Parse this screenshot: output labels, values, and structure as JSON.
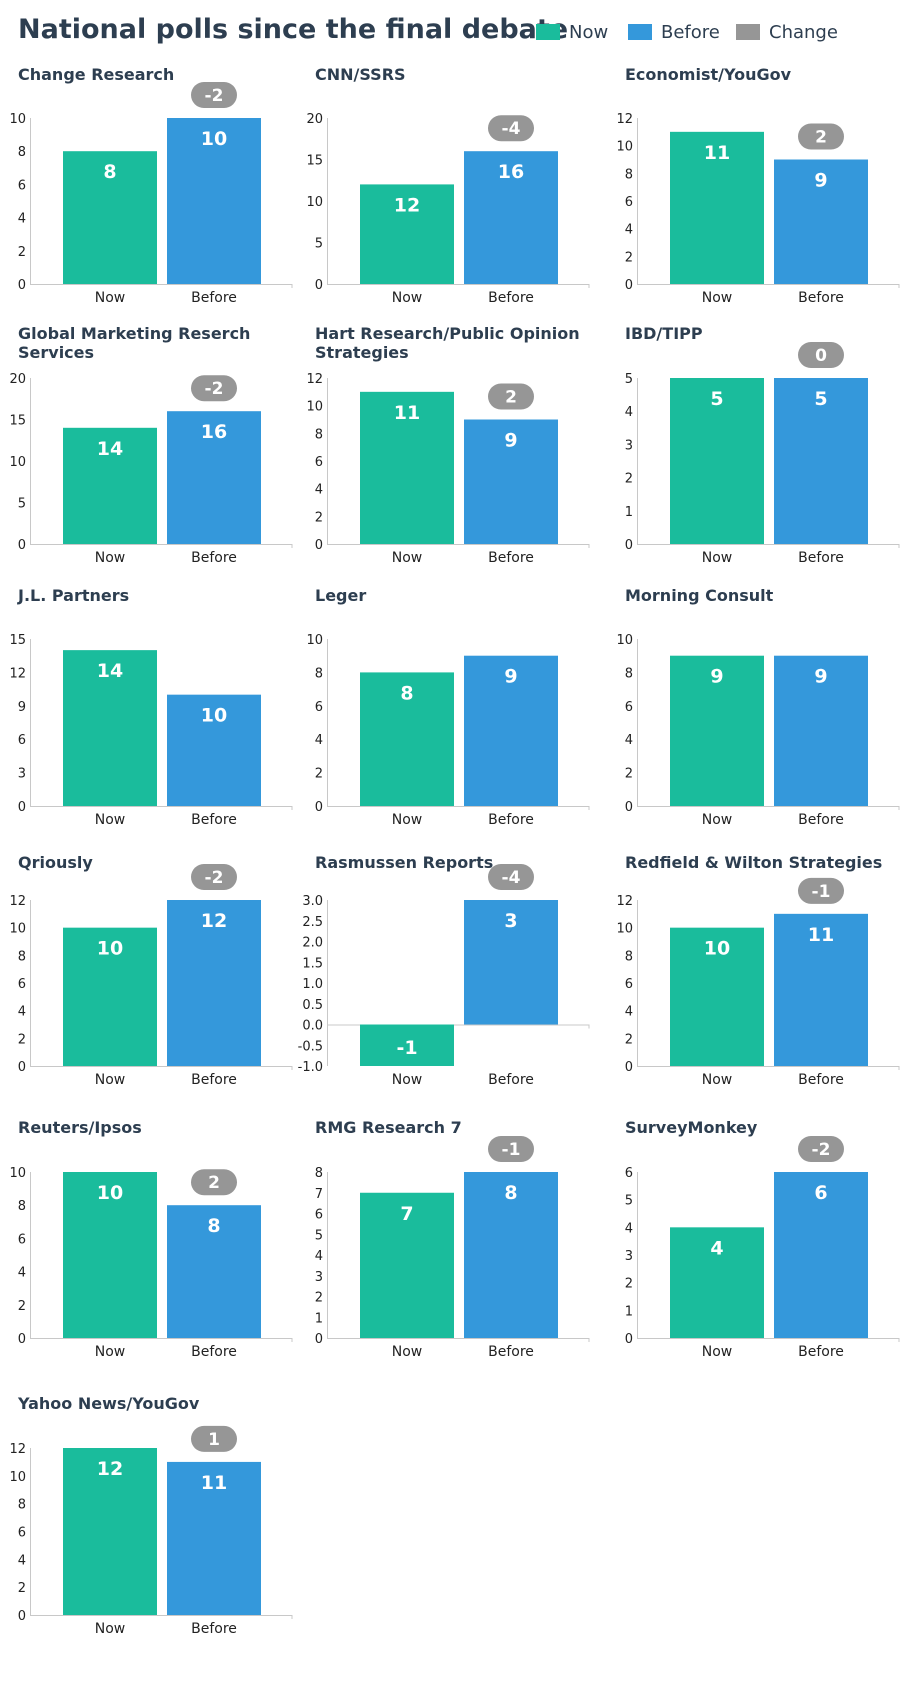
{
  "title": "National polls since the final debate",
  "legend": [
    {
      "label": "Now",
      "color": "#1abc9c"
    },
    {
      "label": "Before",
      "color": "#3498db"
    },
    {
      "label": "Change",
      "color": "#969696"
    }
  ],
  "colors": {
    "now": "#1abc9c",
    "before": "#3498db",
    "change": "#969696",
    "text": "#2d3e50",
    "axis": "#c8c8c8"
  },
  "chart_data": [
    {
      "type": "bar",
      "title": "Change Research",
      "categories": [
        "Now",
        "Before"
      ],
      "values": [
        8,
        10
      ],
      "value_labels": [
        "8",
        "10"
      ],
      "change": "-2",
      "ylim": [
        0,
        10
      ],
      "yticks": [
        "0",
        "2",
        "4",
        "6",
        "8",
        "10"
      ]
    },
    {
      "type": "bar",
      "title": "CNN/SSRS",
      "categories": [
        "Now",
        "Before"
      ],
      "values": [
        12,
        16
      ],
      "value_labels": [
        "12",
        "16"
      ],
      "change": "-4",
      "ylim": [
        0,
        20
      ],
      "yticks": [
        "0",
        "5",
        "10",
        "15",
        "20"
      ]
    },
    {
      "type": "bar",
      "title": "Economist/YouGov",
      "categories": [
        "Now",
        "Before"
      ],
      "values": [
        11,
        9
      ],
      "value_labels": [
        "11",
        "9"
      ],
      "change": "2",
      "ylim": [
        0,
        12
      ],
      "yticks": [
        "0",
        "2",
        "4",
        "6",
        "8",
        "10",
        "12"
      ]
    },
    {
      "type": "bar",
      "title": "Global Marketing Reserch Services",
      "categories": [
        "Now",
        "Before"
      ],
      "values": [
        14,
        16
      ],
      "value_labels": [
        "14",
        "16"
      ],
      "change": "-2",
      "ylim": [
        0,
        20
      ],
      "yticks": [
        "0",
        "5",
        "10",
        "15",
        "20"
      ]
    },
    {
      "type": "bar",
      "title": "Hart Research/Public Opinion Strategies",
      "categories": [
        "Now",
        "Before"
      ],
      "values": [
        11,
        9
      ],
      "value_labels": [
        "11",
        "9"
      ],
      "change": "2",
      "ylim": [
        0,
        12
      ],
      "yticks": [
        "0",
        "2",
        "4",
        "6",
        "8",
        "10",
        "12"
      ]
    },
    {
      "type": "bar",
      "title": "IBD/TIPP",
      "categories": [
        "Now",
        "Before"
      ],
      "values": [
        5,
        5
      ],
      "value_labels": [
        "5",
        "5"
      ],
      "change": "0",
      "ylim": [
        0,
        5
      ],
      "yticks": [
        "0",
        "1",
        "2",
        "3",
        "4",
        "5"
      ]
    },
    {
      "type": "bar",
      "title": "J.L. Partners",
      "categories": [
        "Now",
        "Before"
      ],
      "values": [
        14,
        10
      ],
      "value_labels": [
        "14",
        "10"
      ],
      "change": "",
      "ylim": [
        0,
        15
      ],
      "yticks": [
        "0",
        "3",
        "6",
        "9",
        "12",
        "15"
      ]
    },
    {
      "type": "bar",
      "title": "Leger",
      "categories": [
        "Now",
        "Before"
      ],
      "values": [
        8,
        9
      ],
      "value_labels": [
        "8",
        "9"
      ],
      "change": "",
      "ylim": [
        0,
        10
      ],
      "yticks": [
        "0",
        "2",
        "4",
        "6",
        "8",
        "10"
      ]
    },
    {
      "type": "bar",
      "title": "Morning Consult",
      "categories": [
        "Now",
        "Before"
      ],
      "values": [
        9,
        9
      ],
      "value_labels": [
        "9",
        "9"
      ],
      "change": "",
      "ylim": [
        0,
        10
      ],
      "yticks": [
        "0",
        "2",
        "4",
        "6",
        "8",
        "10"
      ]
    },
    {
      "type": "bar",
      "title": "Qriously",
      "categories": [
        "Now",
        "Before"
      ],
      "values": [
        10,
        12
      ],
      "value_labels": [
        "10",
        "12"
      ],
      "change": "-2",
      "ylim": [
        0,
        12
      ],
      "yticks": [
        "0",
        "2",
        "4",
        "6",
        "8",
        "10",
        "12"
      ]
    },
    {
      "type": "bar",
      "title": "Rasmussen Reports",
      "categories": [
        "Now",
        "Before"
      ],
      "values": [
        -1,
        3
      ],
      "value_labels": [
        "-1",
        "3"
      ],
      "change": "-4",
      "ylim": [
        -1,
        3
      ],
      "yticks": [
        "-1.0",
        "-0.5",
        "0.0",
        "0.5",
        "1.0",
        "1.5",
        "2.0",
        "2.5",
        "3.0"
      ]
    },
    {
      "type": "bar",
      "title": "Redfield & Wilton Strategies",
      "categories": [
        "Now",
        "Before"
      ],
      "values": [
        10,
        11
      ],
      "value_labels": [
        "10",
        "11"
      ],
      "change": "-1",
      "ylim": [
        0,
        12
      ],
      "yticks": [
        "0",
        "2",
        "4",
        "6",
        "8",
        "10",
        "12"
      ]
    },
    {
      "type": "bar",
      "title": "Reuters/Ipsos",
      "categories": [
        "Now",
        "Before"
      ],
      "values": [
        10,
        8
      ],
      "value_labels": [
        "10",
        "8"
      ],
      "change": "2",
      "ylim": [
        0,
        10
      ],
      "yticks": [
        "0",
        "2",
        "4",
        "6",
        "8",
        "10"
      ]
    },
    {
      "type": "bar",
      "title": "RMG Research   7",
      "categories": [
        "Now",
        "Before"
      ],
      "values": [
        7,
        8
      ],
      "value_labels": [
        "7",
        "8"
      ],
      "change": "-1",
      "ylim": [
        0,
        8
      ],
      "yticks": [
        "0",
        "1",
        "2",
        "3",
        "4",
        "5",
        "6",
        "7",
        "8"
      ]
    },
    {
      "type": "bar",
      "title": "SurveyMonkey",
      "categories": [
        "Now",
        "Before"
      ],
      "values": [
        4,
        6
      ],
      "value_labels": [
        "4",
        "6"
      ],
      "change": "-2",
      "ylim": [
        0,
        6
      ],
      "yticks": [
        "0",
        "1",
        "2",
        "3",
        "4",
        "5",
        "6"
      ]
    },
    {
      "type": "bar",
      "title": "Yahoo News/YouGov",
      "categories": [
        "Now",
        "Before"
      ],
      "values": [
        12,
        11
      ],
      "value_labels": [
        "12",
        "11"
      ],
      "change": "1",
      "ylim": [
        0,
        12
      ],
      "yticks": [
        "0",
        "2",
        "4",
        "6",
        "8",
        "10",
        "12"
      ]
    }
  ]
}
